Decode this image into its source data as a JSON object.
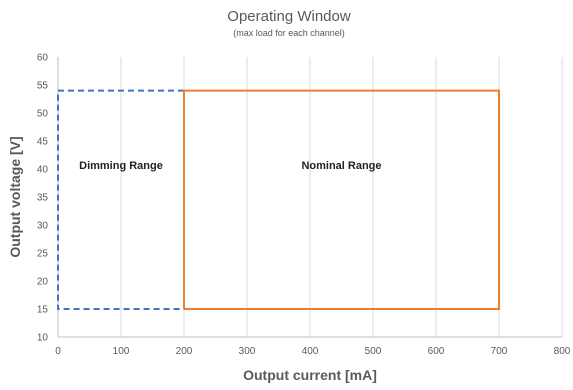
{
  "chart_data": {
    "type": "line",
    "title": "Operating Window",
    "subtitle": "(max load for each channel)",
    "xlabel": "Output current [mA]",
    "ylabel": "Output voltage [V]",
    "xlim": [
      0,
      800
    ],
    "ylim": [
      10,
      60
    ],
    "x_ticks": [
      0,
      100,
      200,
      300,
      400,
      500,
      600,
      700,
      800
    ],
    "y_ticks": [
      10,
      15,
      20,
      25,
      30,
      35,
      40,
      45,
      50,
      55,
      60
    ],
    "grid": "vertical",
    "series": [
      {
        "label": "Dimming Range",
        "style": "dashed",
        "color": "#4472C4",
        "points": [
          [
            200,
            54
          ],
          [
            0,
            54
          ],
          [
            0,
            15
          ],
          [
            200,
            15
          ]
        ]
      },
      {
        "label": "Nominal Range",
        "style": "solid",
        "color": "#ED7D31",
        "points": [
          [
            200,
            15
          ],
          [
            200,
            54
          ],
          [
            700,
            54
          ],
          [
            700,
            15
          ],
          [
            200,
            15
          ]
        ]
      }
    ],
    "annotations": [
      {
        "text": "Dimming Range",
        "x": 100,
        "y": 40
      },
      {
        "text": "Nominal Range",
        "x": 450,
        "y": 40
      }
    ]
  }
}
